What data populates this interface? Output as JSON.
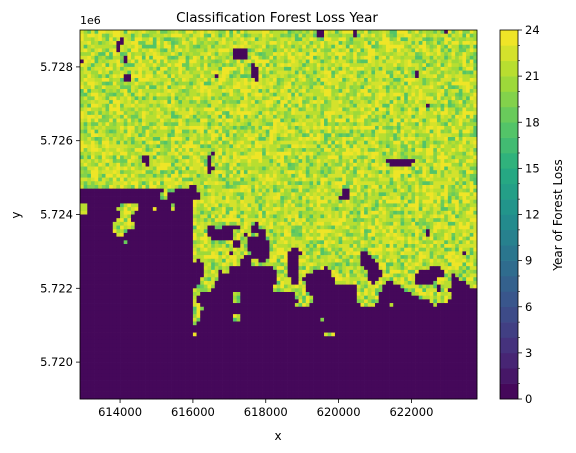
{
  "chart_data": {
    "type": "heatmap",
    "title": "Classification Forest Loss Year",
    "xlabel": "x",
    "ylabel": "y",
    "y_offset_label": "1e6",
    "xlim": [
      612900,
      623800
    ],
    "ylim": [
      5719000,
      5729000
    ],
    "x_ticks": [
      614000,
      616000,
      618000,
      620000,
      622000
    ],
    "x_tick_labels": [
      "614000",
      "616000",
      "618000",
      "620000",
      "622000"
    ],
    "y_ticks": [
      5720000,
      5722000,
      5724000,
      5726000,
      5728000
    ],
    "y_tick_labels": [
      "5.720",
      "5.722",
      "5.724",
      "5.726",
      "5.728"
    ],
    "colorbar": {
      "label": "Year of Forest Loss",
      "vmin": 0,
      "vmax": 24,
      "levels": 24,
      "ticks": [
        0,
        3,
        6,
        9,
        12,
        15,
        18,
        21,
        24
      ],
      "tick_labels": [
        "0",
        "3",
        "6",
        "9",
        "12",
        "15",
        "18",
        "21",
        "24"
      ],
      "colormap": "viridis"
    },
    "grid": {
      "columns": 109,
      "rows": 100,
      "cell_size_m": 100,
      "description_values": "per-pixel year of forest loss (0 = no loss); dense recent loss (years ~18-24) in northern and central areas, mostly 0 in the south-west and south"
    }
  }
}
